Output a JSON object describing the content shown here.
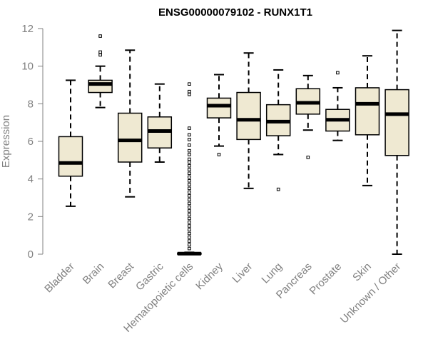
{
  "chart_data": {
    "type": "boxplot",
    "title": "ENSG00000079102 - RUNX1T1",
    "xlabel": "",
    "ylabel": "Expression",
    "ylim": [
      0,
      12
    ],
    "yticks": [
      0,
      2,
      4,
      6,
      8,
      10,
      12
    ],
    "grid": false,
    "box_fill": "#efe9d2",
    "categories": [
      "Bladder",
      "Brain",
      "Breast",
      "Gastric",
      "Hematopoietic cells",
      "Kidney",
      "Liver",
      "Lung",
      "Pancreas",
      "Prostate",
      "Skin",
      "Unknown / Other"
    ],
    "boxes": [
      {
        "whisker_low": 2.55,
        "q1": 4.15,
        "median": 4.85,
        "q3": 6.25,
        "whisker_high": 9.25,
        "outliers": []
      },
      {
        "whisker_low": 7.8,
        "q1": 8.6,
        "median": 9.05,
        "q3": 9.25,
        "whisker_high": 10.0,
        "outliers": [
          10.6,
          10.75,
          11.6
        ]
      },
      {
        "whisker_low": 3.05,
        "q1": 4.9,
        "median": 6.05,
        "q3": 7.5,
        "whisker_high": 10.85,
        "outliers": []
      },
      {
        "whisker_low": 4.9,
        "q1": 5.65,
        "median": 6.55,
        "q3": 7.3,
        "whisker_high": 9.05,
        "outliers": []
      },
      {
        "whisker_low": 0.0,
        "q1": 0.0,
        "median": 0.03,
        "q3": 0.06,
        "whisker_high": 0.1,
        "outliers": [
          0.3,
          0.5,
          0.7,
          0.9,
          1.1,
          1.3,
          1.5,
          1.7,
          1.9,
          2.1,
          2.3,
          2.5,
          2.7,
          2.9,
          3.1,
          3.3,
          3.5,
          3.7,
          3.9,
          4.1,
          4.3,
          4.5,
          4.7,
          4.9,
          5.05,
          5.3,
          5.5,
          5.8,
          6.1,
          6.35,
          6.7,
          8.5,
          8.65,
          9.05
        ]
      },
      {
        "whisker_low": 5.75,
        "q1": 7.25,
        "median": 7.9,
        "q3": 8.3,
        "whisker_high": 9.55,
        "outliers": [
          5.3
        ]
      },
      {
        "whisker_low": 3.5,
        "q1": 6.1,
        "median": 7.15,
        "q3": 8.6,
        "whisker_high": 10.7,
        "outliers": []
      },
      {
        "whisker_low": 5.3,
        "q1": 6.3,
        "median": 7.05,
        "q3": 7.95,
        "whisker_high": 9.8,
        "outliers": [
          3.45
        ]
      },
      {
        "whisker_low": 6.6,
        "q1": 7.45,
        "median": 8.05,
        "q3": 8.8,
        "whisker_high": 9.5,
        "outliers": [
          5.15
        ]
      },
      {
        "whisker_low": 6.05,
        "q1": 6.55,
        "median": 7.15,
        "q3": 7.7,
        "whisker_high": 8.85,
        "outliers": [
          9.65
        ]
      },
      {
        "whisker_low": 3.65,
        "q1": 6.35,
        "median": 8.0,
        "q3": 8.85,
        "whisker_high": 10.55,
        "outliers": []
      },
      {
        "whisker_low": 0.0,
        "q1": 5.25,
        "median": 7.45,
        "q3": 8.75,
        "whisker_high": 11.9,
        "outliers": []
      }
    ]
  }
}
